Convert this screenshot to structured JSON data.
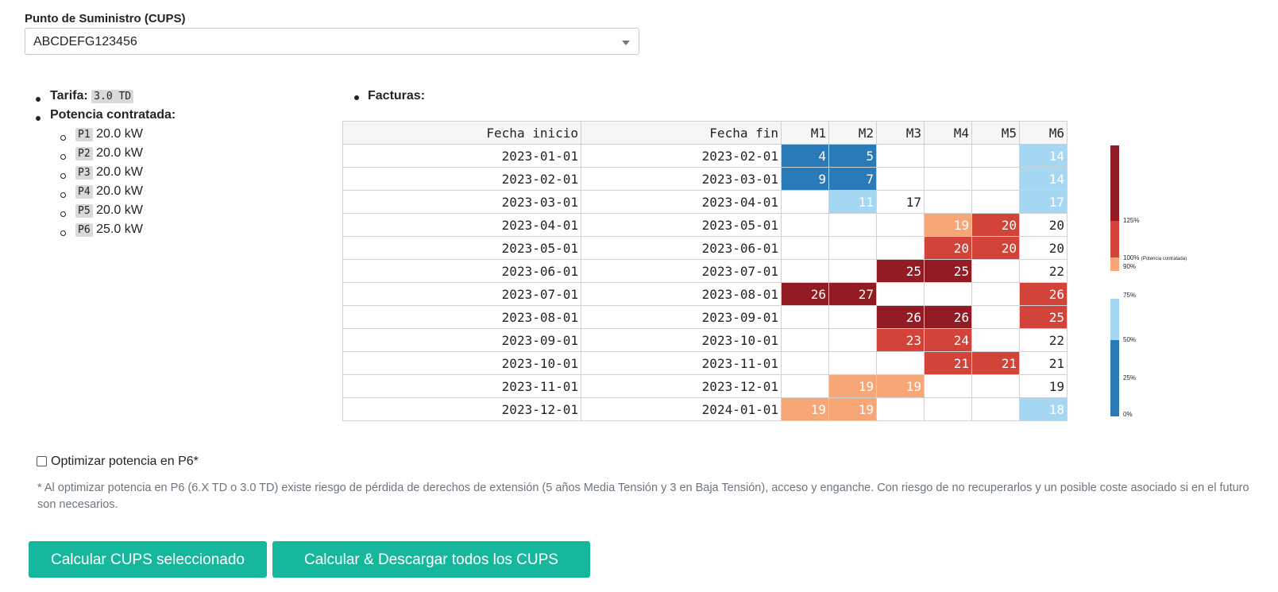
{
  "selector": {
    "label": "Punto de Suministro (CUPS)",
    "value": "ABCDEFG123456"
  },
  "info": {
    "tarifa_label": "Tarifa:",
    "tarifa_value": "3.0 TD",
    "potencia_label": "Potencia contratada:",
    "periods": [
      {
        "code": "P1",
        "value": "20.0 kW"
      },
      {
        "code": "P2",
        "value": "20.0 kW"
      },
      {
        "code": "P3",
        "value": "20.0 kW"
      },
      {
        "code": "P4",
        "value": "20.0 kW"
      },
      {
        "code": "P5",
        "value": "20.0 kW"
      },
      {
        "code": "P6",
        "value": "25.0 kW"
      }
    ]
  },
  "facturas": {
    "title": "Facturas:",
    "headers": [
      "Fecha inicio",
      "Fecha fin",
      "M1",
      "M2",
      "M3",
      "M4",
      "M5",
      "M6"
    ],
    "rows": [
      {
        "inicio": "2023-01-01",
        "fin": "2023-02-01",
        "m": [
          "4",
          "5",
          "",
          "",
          "",
          "14"
        ]
      },
      {
        "inicio": "2023-02-01",
        "fin": "2023-03-01",
        "m": [
          "9",
          "7",
          "",
          "",
          "",
          "14"
        ]
      },
      {
        "inicio": "2023-03-01",
        "fin": "2023-04-01",
        "m": [
          "",
          "11",
          "17",
          "",
          "",
          "17"
        ]
      },
      {
        "inicio": "2023-04-01",
        "fin": "2023-05-01",
        "m": [
          "",
          "",
          "",
          "19",
          "20",
          "20"
        ]
      },
      {
        "inicio": "2023-05-01",
        "fin": "2023-06-01",
        "m": [
          "",
          "",
          "",
          "20",
          "20",
          "20"
        ]
      },
      {
        "inicio": "2023-06-01",
        "fin": "2023-07-01",
        "m": [
          "",
          "",
          "25",
          "25",
          "",
          "22"
        ]
      },
      {
        "inicio": "2023-07-01",
        "fin": "2023-08-01",
        "m": [
          "26",
          "27",
          "",
          "",
          "",
          "26"
        ]
      },
      {
        "inicio": "2023-08-01",
        "fin": "2023-09-01",
        "m": [
          "",
          "",
          "26",
          "26",
          "",
          "25"
        ]
      },
      {
        "inicio": "2023-09-01",
        "fin": "2023-10-01",
        "m": [
          "",
          "",
          "23",
          "24",
          "",
          "22"
        ]
      },
      {
        "inicio": "2023-10-01",
        "fin": "2023-11-01",
        "m": [
          "",
          "",
          "",
          "21",
          "21",
          "21"
        ]
      },
      {
        "inicio": "2023-11-01",
        "fin": "2023-12-01",
        "m": [
          "",
          "19",
          "19",
          "",
          "",
          "19"
        ]
      },
      {
        "inicio": "2023-12-01",
        "fin": "2024-01-01",
        "m": [
          "19",
          "19",
          "",
          "",
          "",
          "18"
        ]
      }
    ]
  },
  "colorbar": {
    "ticks": {
      "t125": "125%",
      "t100": "100%",
      "t100_note": "(Potencia contratada)",
      "t90": "90%",
      "t75": "75%",
      "t50": "50%",
      "t25": "25%",
      "t0": "0%"
    },
    "colors": {
      "dark_red": "#931b24",
      "red": "#d2443a",
      "orange": "#f6a775",
      "light_blue": "#a5d7f3",
      "blue": "#2a7ab8"
    }
  },
  "options": {
    "checkbox_label": "Optimizar potencia en P6*",
    "checked": false,
    "note": "* Al optimizar potencia en P6 (6.X TD o 3.0 TD) existe riesgo de pérdida de derechos de extensión (5 años Media Tensión y 3 en Baja Tensión), acceso y enganche. Con riesgo de no recuperarlos y un posible coste asociado si en el futuro son necesarios."
  },
  "buttons": {
    "calc_selected": "Calcular CUPS seleccionado",
    "calc_all": "Calcular & Descargar todos los CUPS"
  }
}
